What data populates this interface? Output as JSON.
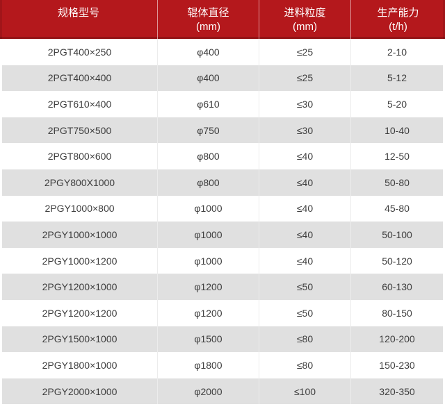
{
  "chart_data": {
    "type": "table",
    "columns": [
      "规格型号",
      "辊体直径 (mm)",
      "进料粒度 (mm)",
      "生产能力 (t/h)"
    ],
    "rows": [
      [
        "2PGT400×250",
        "φ400",
        "≤25",
        "2-10"
      ],
      [
        "2PGT400×400",
        "φ400",
        "≤25",
        "5-12"
      ],
      [
        "2PGT610×400",
        "φ610",
        "≤30",
        "5-20"
      ],
      [
        "2PGT750×500",
        "φ750",
        "≤30",
        "10-40"
      ],
      [
        "2PGT800×600",
        "φ800",
        "≤40",
        "12-50"
      ],
      [
        "2PGY800X1000",
        "φ800",
        "≤40",
        "50-80"
      ],
      [
        "2PGY1000×800",
        "φ1000",
        "≤40",
        "45-80"
      ],
      [
        "2PGY1000×1000",
        "φ1000",
        "≤40",
        "50-100"
      ],
      [
        "2PGY1000×1200",
        "φ1000",
        "≤40",
        "50-120"
      ],
      [
        "2PGY1200×1000",
        "φ1200",
        "≤50",
        "60-130"
      ],
      [
        "2PGY1200×1200",
        "φ1200",
        "≤50",
        "80-150"
      ],
      [
        "2PGY1500×1000",
        "φ1500",
        "≤80",
        "120-200"
      ],
      [
        "2PGY1800×1000",
        "φ1800",
        "≤80",
        "150-230"
      ],
      [
        "2PGY2000×1000",
        "φ2000",
        "≤100",
        "320-350"
      ]
    ],
    "layout": {
      "header_position": "top",
      "grid": "horizontal-zebra",
      "zebra_start": "white"
    }
  },
  "table": {
    "header": [
      {
        "label": "规格型号",
        "unit": ""
      },
      {
        "label": "辊体直径",
        "unit": "(mm)"
      },
      {
        "label": "进料粒度",
        "unit": "(mm)"
      },
      {
        "label": "生产能力",
        "unit": "(t/h)"
      }
    ]
  },
  "colors": {
    "page_bg": "#ffffff",
    "header_bg": "#b4181c",
    "header_border_dark": "#971417",
    "header_text": "#ffffff",
    "row_bg": "#ffffff",
    "row_alt_bg": "#e0e0e0",
    "cell_text": "#3d3d3d",
    "divider": "#ececec"
  }
}
